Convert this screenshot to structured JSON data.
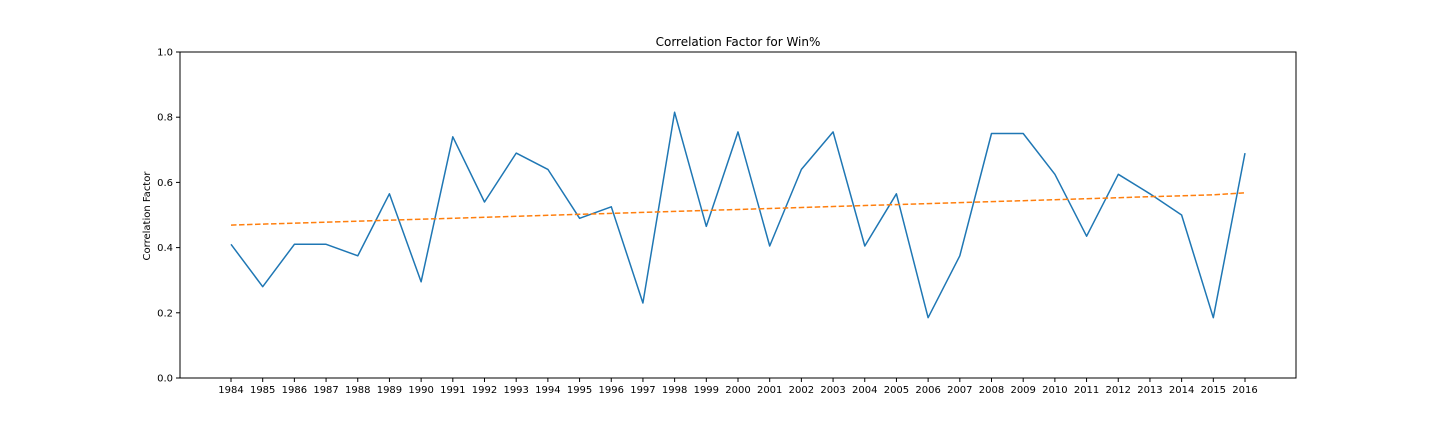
{
  "chart_data": {
    "type": "line",
    "title": "Correlation Factor for Win%",
    "xlabel": "",
    "ylabel": "Correlation Factor",
    "ylim": [
      0.0,
      1.0
    ],
    "y_ticks": [
      "0.0",
      "0.2",
      "0.4",
      "0.6",
      "0.8",
      "1.0"
    ],
    "y_tick_values": [
      0.0,
      0.2,
      0.4,
      0.6,
      0.8,
      1.0
    ],
    "categories": [
      "1984",
      "1985",
      "1986",
      "1987",
      "1988",
      "1989",
      "1990",
      "1991",
      "1992",
      "1993",
      "1994",
      "1995",
      "1996",
      "1997",
      "1998",
      "1999",
      "2000",
      "2001",
      "2002",
      "2003",
      "2004",
      "2005",
      "2006",
      "2007",
      "2008",
      "2009",
      "2010",
      "2011",
      "2012",
      "2013",
      "2014",
      "2015",
      "2016"
    ],
    "grid": false,
    "series": [
      {
        "style": "solid",
        "color": "#1f77b4",
        "values": [
          0.41,
          0.28,
          0.41,
          0.41,
          0.375,
          0.565,
          0.295,
          0.74,
          0.54,
          0.69,
          0.64,
          0.49,
          0.525,
          0.23,
          0.815,
          0.465,
          0.755,
          0.405,
          0.64,
          0.755,
          0.405,
          0.565,
          0.185,
          0.375,
          0.75,
          0.75,
          0.625,
          0.435,
          0.625,
          0.565,
          0.5,
          0.185,
          0.69
        ]
      },
      {
        "style": "dashed",
        "color": "#ff7f0e",
        "values": [
          0.469,
          0.472,
          0.475,
          0.478,
          0.481,
          0.484,
          0.487,
          0.49,
          0.493,
          0.496,
          0.499,
          0.502,
          0.505,
          0.508,
          0.511,
          0.514,
          0.517,
          0.52,
          0.523,
          0.526,
          0.529,
          0.532,
          0.535,
          0.538,
          0.541,
          0.544,
          0.547,
          0.55,
          0.553,
          0.556,
          0.559,
          0.562,
          0.568
        ]
      }
    ]
  }
}
